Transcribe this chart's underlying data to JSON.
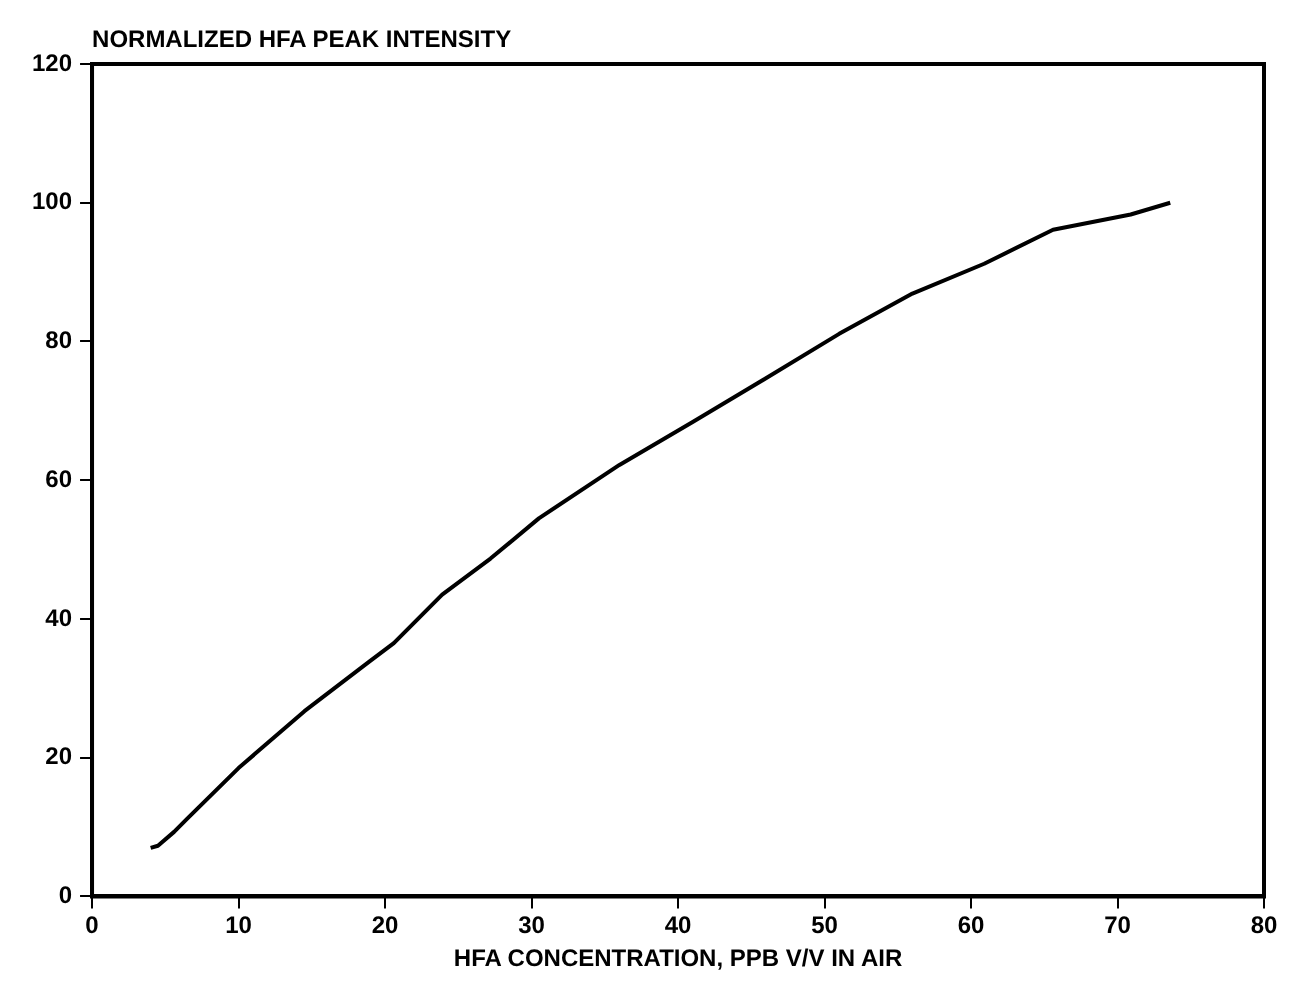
{
  "chart_data": {
    "type": "line",
    "ylabel": "NORMALIZED HFA PEAK INTENSITY",
    "xlabel": "HFA CONCENTRATION, PPB V/V IN AIR",
    "x": [
      4,
      4.5,
      5.6,
      6.5,
      10,
      14.5,
      18.9,
      20.6,
      23.9,
      27.2,
      30.5,
      36,
      41,
      46,
      51,
      56,
      60.9,
      65.6,
      70.9,
      73.6
    ],
    "series": [
      {
        "color": "#000000",
        "values": [
          7,
          7.3,
          9.3,
          11.2,
          18.5,
          26.7,
          33.8,
          36.5,
          43.5,
          48.7,
          54.5,
          62.2,
          68.4,
          74.7,
          81.1,
          86.9,
          91.2,
          96.1,
          98.3,
          100
        ]
      }
    ],
    "xlim": [
      0,
      80
    ],
    "xticks": [
      0,
      10,
      20,
      30,
      40,
      50,
      60,
      70,
      80
    ],
    "ylim": [
      0,
      120
    ],
    "yticks": [
      0,
      20,
      40,
      60,
      80,
      100,
      120
    ],
    "legend": false,
    "marker": "none",
    "line_style": "solid"
  }
}
